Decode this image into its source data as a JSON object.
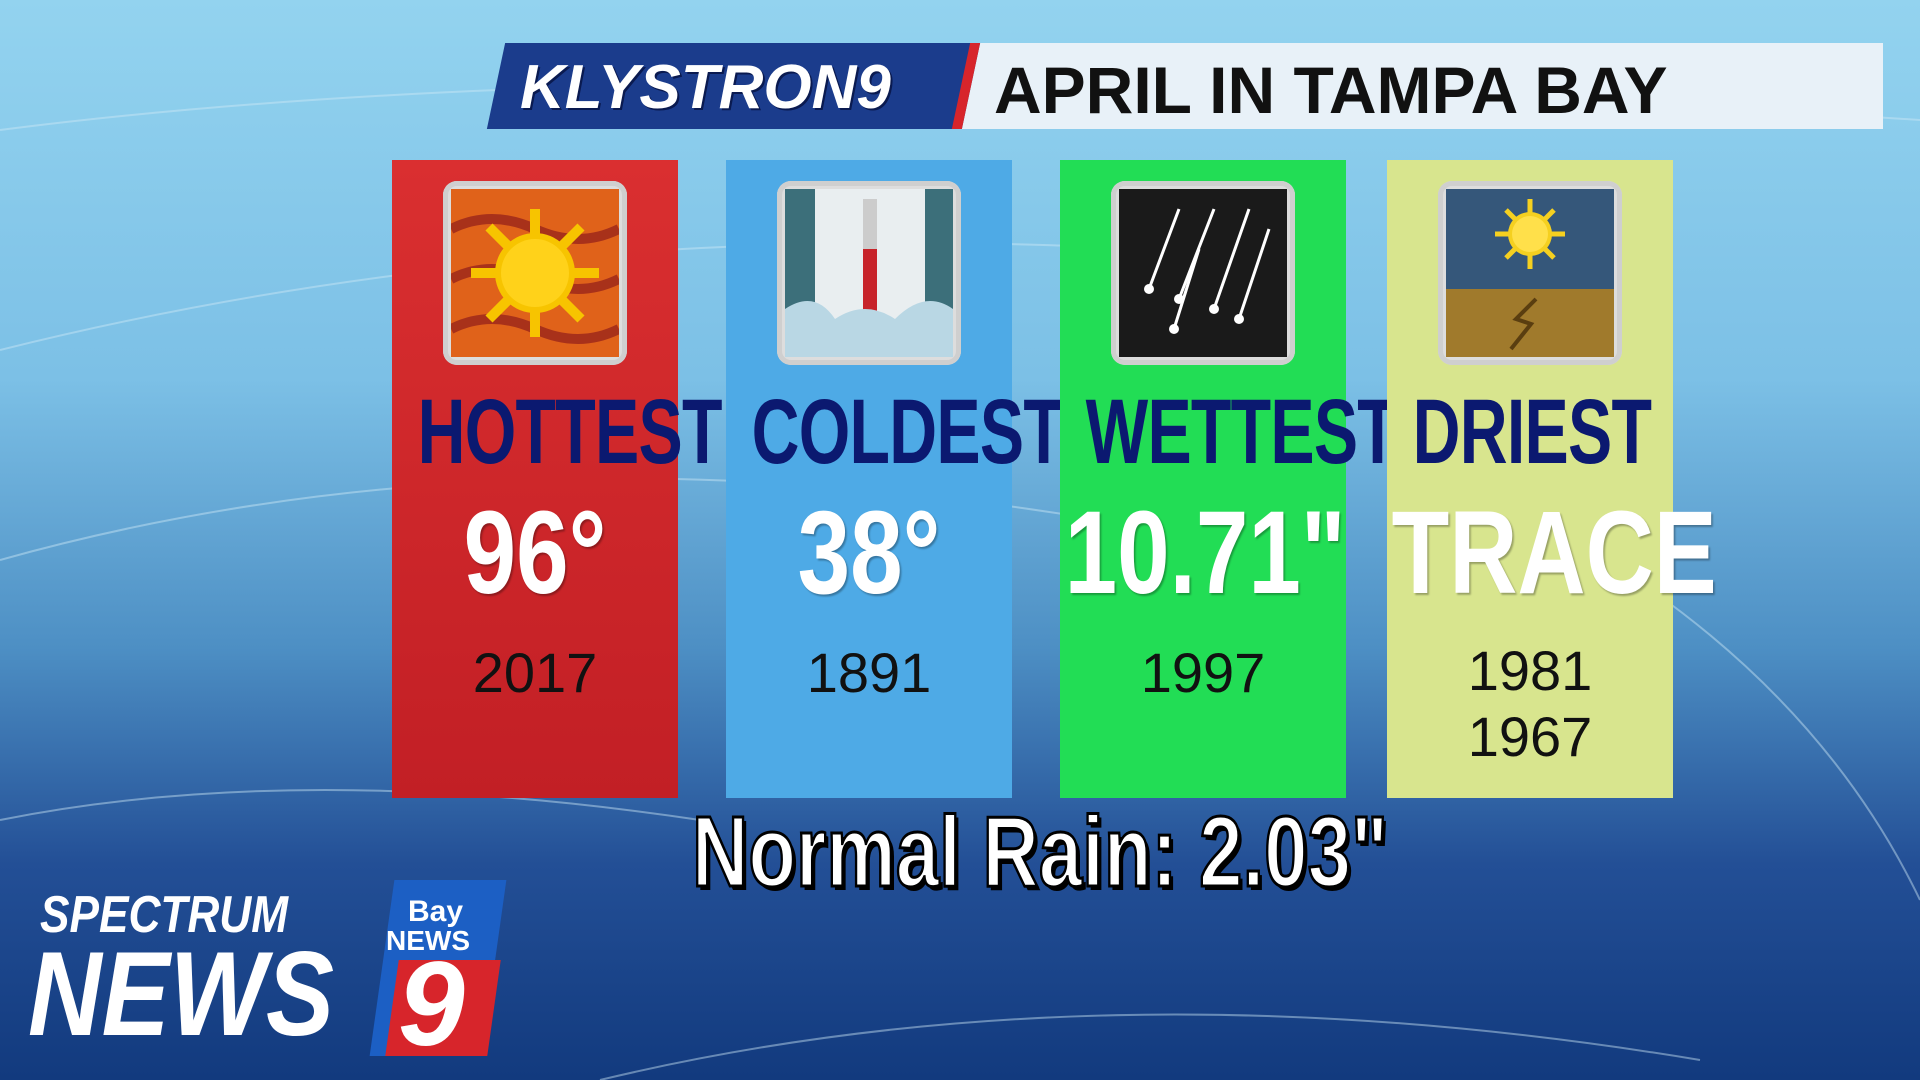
{
  "header": {
    "brand": "KLYSTRON9",
    "title": "APRIL IN TAMPA BAY"
  },
  "records": [
    {
      "label": "HOTTEST",
      "value": "96°",
      "years": [
        "2017"
      ]
    },
    {
      "label": "COLDEST",
      "value": "38°",
      "years": [
        "1891"
      ]
    },
    {
      "label": "WETTEST",
      "value": "10.71\"",
      "years": [
        "1997"
      ]
    },
    {
      "label": "DRIEST",
      "value": "TRACE",
      "years": [
        "1981",
        "1967"
      ]
    }
  ],
  "footer": {
    "normal_rain": "Normal Rain: 2.03\""
  },
  "logo": {
    "line1": "SPECTRUM",
    "line2": "NEWS",
    "badge_top": "Bay",
    "badge_mid": "NEWS",
    "badge_num": "9"
  }
}
